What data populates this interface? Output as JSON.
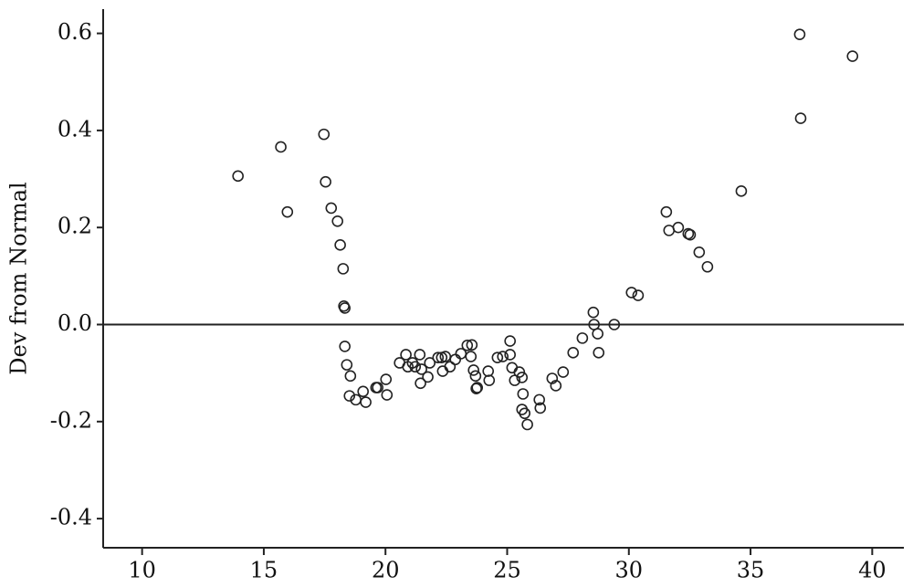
{
  "chart_data": {
    "type": "scatter",
    "y_label": "Dev from Normal",
    "xlim": [
      8.4,
      41.3
    ],
    "ylim": [
      -0.46,
      0.65
    ],
    "xticks": [
      10,
      15,
      20,
      25,
      30,
      35,
      40
    ],
    "yticks": [
      0.6,
      0.4,
      0.2,
      {
        "value": 0,
        "label": "0.0"
      },
      -0.2,
      -0.4
    ],
    "color": "#222222",
    "x": [
      13.94,
      15.7,
      15.97,
      17.47,
      17.54,
      17.77,
      18.03,
      18.14,
      18.26,
      18.29,
      18.33,
      18.33,
      18.41,
      18.56,
      18.52,
      18.78,
      19.08,
      19.19,
      19.61,
      19.68,
      20.02,
      20.06,
      20.58,
      20.84,
      20.92,
      21.11,
      21.22,
      21.41,
      21.44,
      21.48,
      21.74,
      21.82,
      22.16,
      22.31,
      22.35,
      22.46,
      22.65,
      22.87,
      23.1,
      23.36,
      23.55,
      23.51,
      23.62,
      23.7,
      23.73,
      23.77,
      24.22,
      24.26,
      24.6,
      24.82,
      25.12,
      25.12,
      25.2,
      25.31,
      25.5,
      25.61,
      25.65,
      25.61,
      25.72,
      25.83,
      26.32,
      26.36,
      26.85,
      27.0,
      27.3,
      27.71,
      28.09,
      28.54,
      28.57,
      28.72,
      28.76,
      29.4,
      30.11,
      30.38,
      31.54,
      31.65,
      32.03,
      32.44,
      32.52,
      32.89,
      33.23,
      34.62,
      37.02,
      37.06,
      39.19
    ],
    "values": [
      0.306,
      0.366,
      0.232,
      0.392,
      0.294,
      0.24,
      0.213,
      0.164,
      0.115,
      0.038,
      0.034,
      -0.045,
      -0.083,
      -0.106,
      -0.147,
      -0.155,
      -0.138,
      -0.16,
      -0.13,
      -0.13,
      -0.113,
      -0.145,
      -0.079,
      -0.062,
      -0.087,
      -0.079,
      -0.087,
      -0.062,
      -0.121,
      -0.092,
      -0.108,
      -0.079,
      -0.068,
      -0.068,
      -0.096,
      -0.066,
      -0.087,
      -0.072,
      -0.06,
      -0.043,
      -0.042,
      -0.066,
      -0.094,
      -0.106,
      -0.132,
      -0.13,
      -0.096,
      -0.115,
      -0.068,
      -0.066,
      -0.034,
      -0.062,
      -0.089,
      -0.115,
      -0.098,
      -0.109,
      -0.143,
      -0.175,
      -0.183,
      -0.206,
      -0.155,
      -0.172,
      -0.111,
      -0.126,
      -0.098,
      -0.058,
      -0.028,
      0.025,
      0.0,
      -0.019,
      -0.058,
      0.0,
      0.066,
      0.06,
      0.232,
      0.194,
      0.2,
      0.187,
      0.185,
      0.149,
      0.119,
      0.275,
      0.598,
      0.425,
      0.553
    ]
  }
}
